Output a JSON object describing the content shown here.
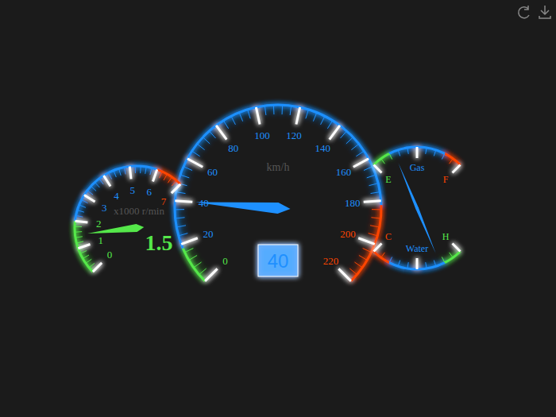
{
  "chart_data": [
    {
      "type": "gauge",
      "title": "km/h",
      "values": [
        40
      ],
      "ylim": [
        0,
        220
      ],
      "yticks": [
        0,
        20,
        40,
        60,
        80,
        100,
        120,
        140,
        160,
        180,
        200,
        220
      ],
      "data_labels": true,
      "bands": [
        {
          "to": 18,
          "color": "#55e84a"
        },
        {
          "to": 182,
          "color": "#1e90ff"
        },
        {
          "to": 220,
          "color": "#ff4500"
        }
      ]
    },
    {
      "type": "gauge",
      "title": "x1000 r/min",
      "values": [
        1.5
      ],
      "ylim": [
        0,
        7
      ],
      "yticks": [
        0,
        1,
        2,
        3,
        4,
        5,
        6,
        7
      ],
      "data_labels": true,
      "bands": [
        {
          "to": 2,
          "color": "#55e84a"
        },
        {
          "to": 6,
          "color": "#1e90ff"
        },
        {
          "to": 7,
          "color": "#ff4500"
        }
      ]
    },
    {
      "type": "gauge",
      "values": [
        0.5
      ],
      "ylim": [
        0,
        2
      ],
      "yticks": [
        {
          "value": 0,
          "label": "E"
        },
        {
          "value": 1,
          "label": "Gas"
        },
        {
          "value": 2,
          "label": "F"
        }
      ],
      "bands": [
        {
          "to": 0.4,
          "color": "#55e84a"
        },
        {
          "to": 1.6,
          "color": "#1e90ff"
        },
        {
          "to": 2,
          "color": "#ff4500"
        }
      ]
    },
    {
      "type": "gauge",
      "values": [
        0.5
      ],
      "ylim": [
        0,
        2
      ],
      "yticks": [
        {
          "value": 0,
          "label": "H"
        },
        {
          "value": 1,
          "label": "Water"
        },
        {
          "value": 2,
          "label": "C"
        }
      ],
      "bands": [
        {
          "to": 0.4,
          "color": "#55e84a"
        },
        {
          "to": 1.6,
          "color": "#1e90ff"
        },
        {
          "to": 2,
          "color": "#ff4500"
        }
      ]
    }
  ]
}
